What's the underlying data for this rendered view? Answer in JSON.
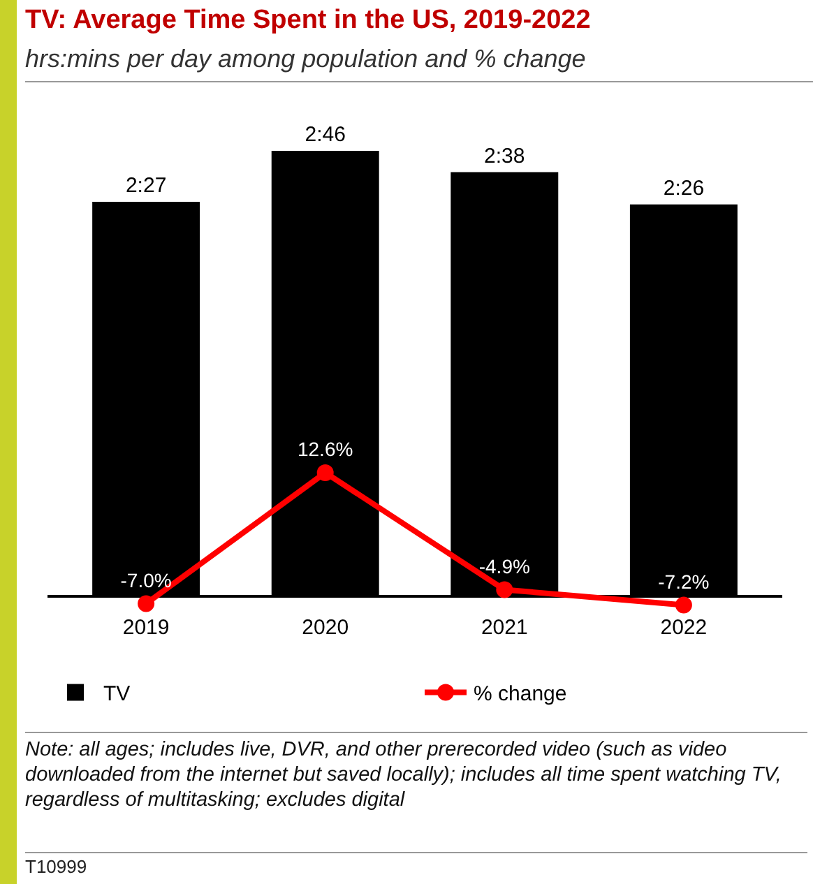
{
  "chart_data": {
    "type": "bar",
    "title": "TV: Average Time Spent in the US, 2019-2022",
    "subtitle": "hrs:mins per day among population and % change",
    "categories": [
      "2019",
      "2020",
      "2021",
      "2022"
    ],
    "series": [
      {
        "name": "TV",
        "color": "#000000",
        "values": [
          147,
          166,
          158,
          146
        ],
        "value_labels": [
          "2:27",
          "2:46",
          "2:38",
          "2:26"
        ]
      },
      {
        "name": "% change",
        "type": "line",
        "axis": "y2",
        "color": "#ff0000",
        "values": [
          -7.0,
          12.6,
          -4.9,
          -7.2
        ],
        "value_labels": [
          "-7.0%",
          "12.6%",
          "-4.9%",
          "-7.2%"
        ]
      }
    ],
    "marker": "circle",
    "legend": "bottom left",
    "grid": false,
    "annotations": [
      "Note: all ages; includes live, DVR, and other prerecorded video (such as video downloaded from the internet but saved locally); includes all time spent watching TV, regardless of multitasking; excludes digital",
      "T10999"
    ]
  }
}
